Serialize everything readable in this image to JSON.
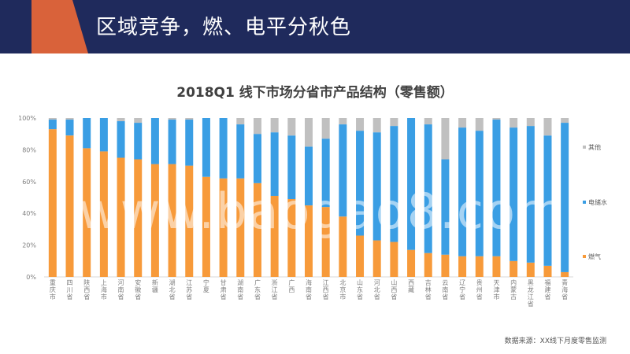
{
  "header": {
    "title": "区域竞争，燃、电平分秋色"
  },
  "watermark": "www.baogao8.com",
  "source_note": "数据来源：XX线下月度零售监测",
  "colors": {
    "header_bg": "#1f2a5c",
    "accent": "#d9623a",
    "gas": "#f79a3a",
    "electric": "#3a9ee4",
    "other": "#c0c0c0"
  },
  "chart_data": {
    "type": "bar",
    "stacked": true,
    "title": "2018Q1 线下市场分省市产品结构（零售额）",
    "yticks": [
      "0%",
      "20%",
      "40%",
      "60%",
      "80%",
      "100%"
    ],
    "ylim": [
      0,
      100
    ],
    "grid": false,
    "legend_position": "right",
    "categories": [
      "重庆市",
      "四川省",
      "陕西省",
      "上海市",
      "河南省",
      "安徽省",
      "新疆",
      "湖北省",
      "江苏省",
      "宁夏",
      "甘肃省",
      "湖南省",
      "广东省",
      "浙江省",
      "广西",
      "海南省",
      "江西省",
      "北京市",
      "山东省",
      "河北省",
      "山西省",
      "西藏",
      "吉林省",
      "云南省",
      "辽宁省",
      "贵州省",
      "天津市",
      "内蒙古",
      "黑龙江省",
      "福建省",
      "青海省"
    ],
    "series": [
      {
        "name": "燃气",
        "color": "#f79a3a",
        "values": [
          93,
          89,
          81,
          79,
          75,
          74,
          71,
          71,
          70,
          63,
          62,
          62,
          59,
          51,
          49,
          45,
          44,
          38,
          26,
          23,
          22,
          17,
          15,
          14,
          13,
          13,
          13,
          10,
          9,
          7,
          3
        ]
      },
      {
        "name": "电储水",
        "color": "#3a9ee4",
        "values": [
          6,
          10,
          19,
          21,
          23,
          23,
          29,
          28,
          29,
          37,
          38,
          34,
          31,
          40,
          40,
          37,
          43,
          58,
          66,
          68,
          73,
          83,
          81,
          60,
          81,
          79,
          86,
          84,
          86,
          82,
          94
        ]
      },
      {
        "name": "其他",
        "color": "#c0c0c0",
        "values": [
          1,
          1,
          0,
          0,
          2,
          3,
          0,
          1,
          1,
          0,
          0,
          4,
          10,
          9,
          11,
          18,
          13,
          4,
          8,
          9,
          5,
          0,
          4,
          26,
          6,
          8,
          1,
          6,
          5,
          11,
          3
        ]
      }
    ]
  }
}
